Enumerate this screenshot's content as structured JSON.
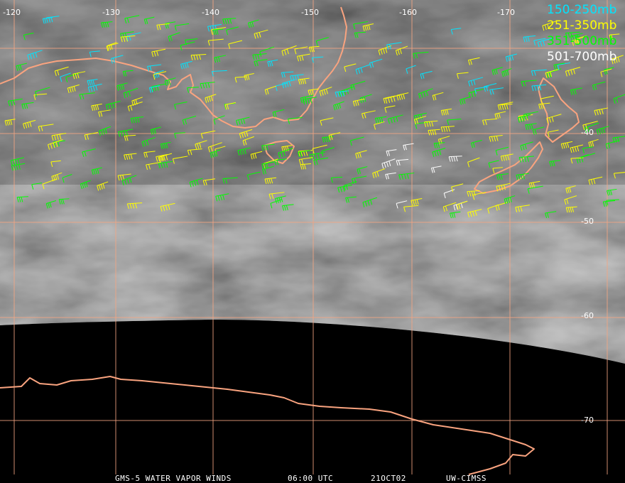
{
  "map": {
    "longitude_labels": [
      "-120",
      "-130",
      "-140",
      "-150",
      "-160",
      "-170"
    ],
    "latitude_labels": [
      "-40",
      "-50",
      "-60",
      "-70"
    ],
    "legend": [
      {
        "label": "150-250mb",
        "color": "#00e5ff"
      },
      {
        "label": "251-350mb",
        "color": "#ffff00"
      },
      {
        "label": "351-500mb",
        "color": "#00ff00"
      },
      {
        "label": "501-700mb",
        "color": "#ffffff"
      }
    ],
    "footer": [
      "GMS-5 WATER VAPOR WINDS",
      "06:00 UTC",
      "21OCT02",
      "UW-CIMSS"
    ]
  }
}
